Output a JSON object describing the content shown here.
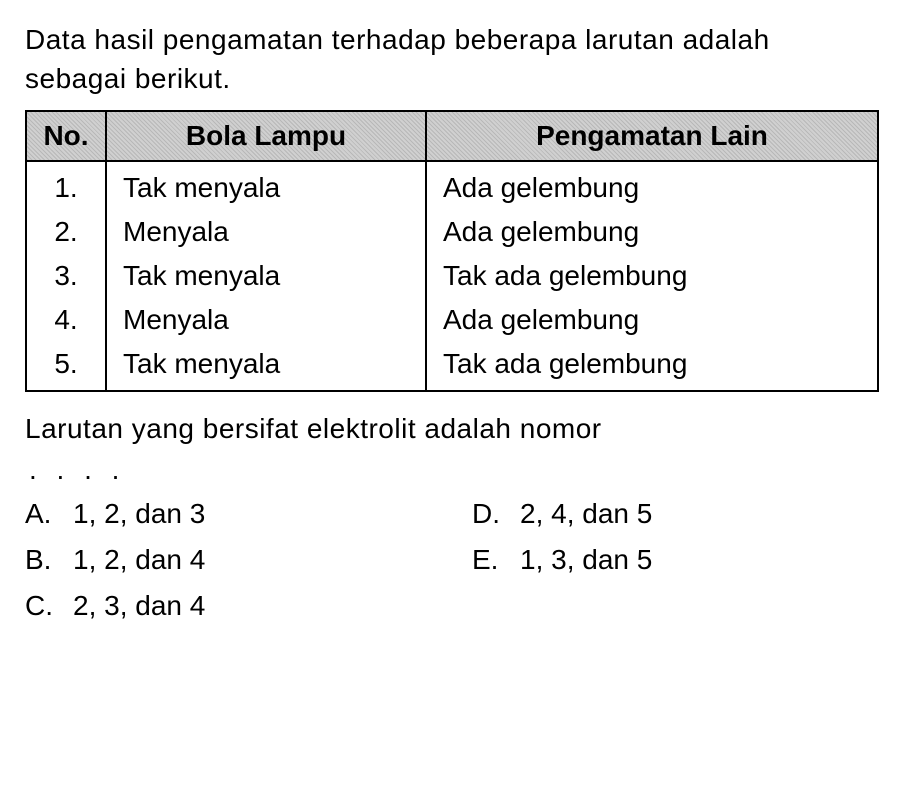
{
  "question": {
    "intro": "Data hasil pengamatan terhadap beberapa larutan adalah sebagai berikut."
  },
  "table": {
    "headers": {
      "no": "No.",
      "col1": "Bola Lampu",
      "col2": "Pengamatan Lain"
    },
    "rows": [
      {
        "no": "1.",
        "lamp": "Tak menyala",
        "obs": "Ada gelembung"
      },
      {
        "no": "2.",
        "lamp": "Menyala",
        "obs": "Ada gelembung"
      },
      {
        "no": "3.",
        "lamp": "Tak menyala",
        "obs": "Tak ada gelembung"
      },
      {
        "no": "4.",
        "lamp": "Menyala",
        "obs": "Ada gelembung"
      },
      {
        "no": "5.",
        "lamp": "Tak menyala",
        "obs": "Tak ada gelembung"
      }
    ]
  },
  "prompt": "Larutan yang bersifat elektrolit adalah nomor",
  "dots": ". . . .",
  "options": {
    "a": {
      "letter": "A.",
      "text": "1, 2, dan 3"
    },
    "b": {
      "letter": "B.",
      "text": "1, 2, dan 4"
    },
    "c": {
      "letter": "C.",
      "text": "2, 3, dan 4"
    },
    "d": {
      "letter": "D.",
      "text": "2, 4, dan 5"
    },
    "e": {
      "letter": "E.",
      "text": "1, 3, dan 5"
    }
  },
  "style": {
    "body_bg": "#ffffff",
    "text_color": "#000000",
    "header_bg": "#c8c8c8",
    "border_color": "#000000",
    "font_size_body": 28,
    "font_family": "Arial"
  }
}
